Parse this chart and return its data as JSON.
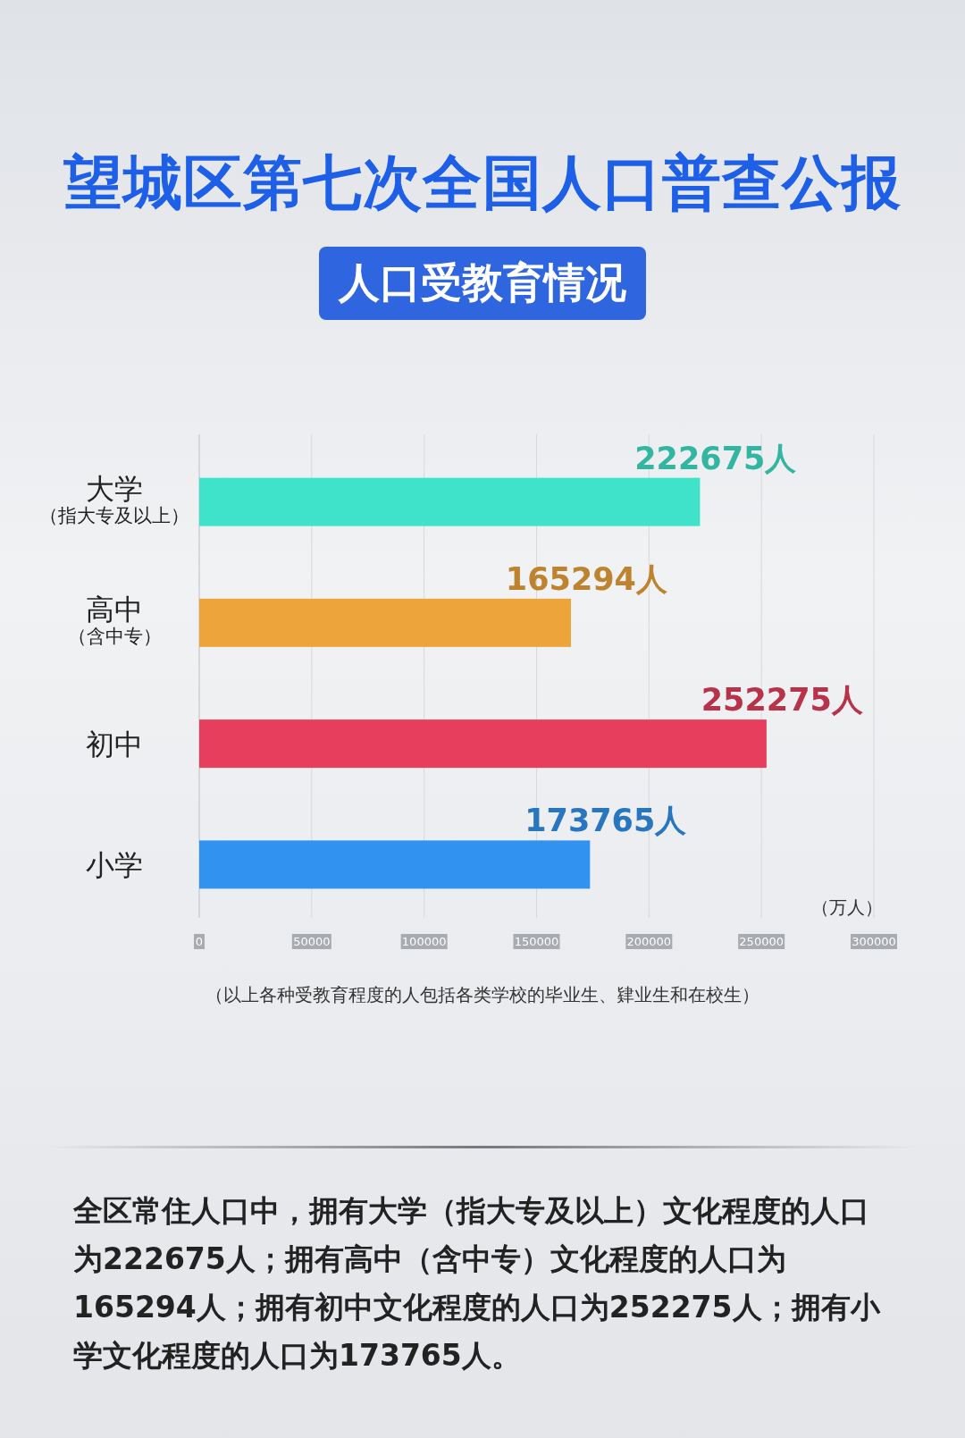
{
  "chart_data": {
    "type": "bar",
    "orientation": "horizontal",
    "title": "望城区第七次全国人口普查公报",
    "subtitle": "人口受教育情况",
    "categories": [
      "大学（指大专及以上）",
      "高中（含中专）",
      "初中",
      "小学"
    ],
    "values": [
      222675,
      165294,
      252275,
      173765
    ],
    "colors": [
      "#3fe3c9",
      "#eda43a",
      "#e63e5c",
      "#3292f0"
    ],
    "value_labels": [
      "222675人",
      "165294人",
      "252275人",
      "173765人"
    ],
    "xlabel": "（万人）",
    "xlim": [
      0,
      300000
    ],
    "xticks": [
      0,
      50000,
      100000,
      150000,
      200000,
      250000,
      300000
    ],
    "grid": "x",
    "annotations": [
      "（以上各种受教育程度的人包括各类学校的毕业生、肄业生和在校生）",
      "全区常住人口中，拥有大学（指大专及以上）文化程度的人口为222675人；拥有高中（含中专）文化程度的人口为165294人；拥有初中文化程度的人口为252275人；拥有小学文化程度的人口为173765人。"
    ]
  }
}
